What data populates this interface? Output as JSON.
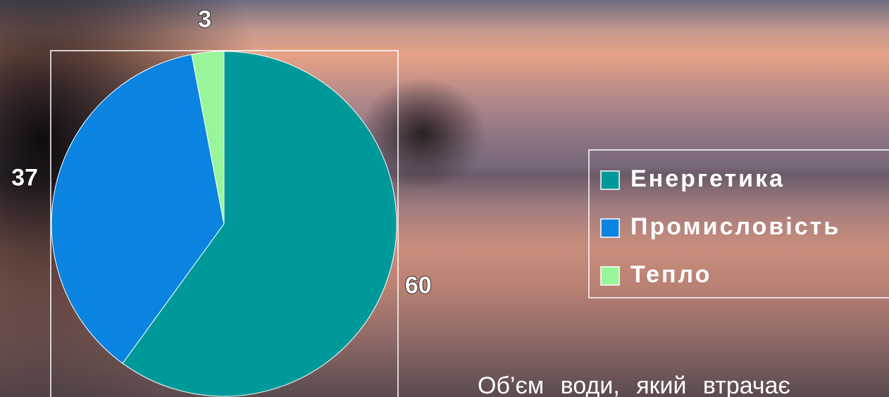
{
  "chart_data": {
    "type": "pie",
    "categories": [
      "Енергетика",
      "Промисловість",
      "Тепло"
    ],
    "values": [
      60,
      37,
      3
    ],
    "colors": [
      "#009999",
      "#0a84e0",
      "#99f59a"
    ],
    "legend": "right",
    "annotations": [
      "Об’єм води, який втрачає"
    ]
  }
}
